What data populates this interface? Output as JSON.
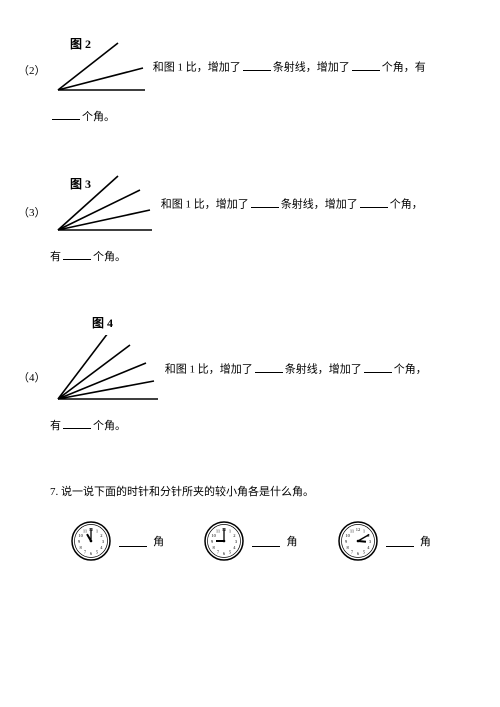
{
  "q2": {
    "num": "（2）",
    "figLabel": "图 2",
    "textA": "和图 1 比，增加了",
    "unitA": "条射线，增加了",
    "unitB": "个角，有",
    "contA": "个角。",
    "rays": 3
  },
  "q3": {
    "num": "（3）",
    "figLabel": "图 3",
    "textA": "和图 1 比，增加了",
    "unitA": "条射线，增加了",
    "unitB": "个角，",
    "contPrefix": "有",
    "contA": "个角。",
    "rays": 4
  },
  "q4": {
    "num": "（4）",
    "figLabel": "图 4",
    "textA": "和图 1 比，增加了",
    "unitA": "条射线，增加了",
    "unitB": "个角，",
    "contPrefix": "有",
    "contA": "个角。",
    "rays": 5
  },
  "q7": {
    "prompt": "7. 说一说下面的时针和分针所夹的较小角各是什么角。",
    "angleWord": "角",
    "clocks": [
      {
        "hour": 11,
        "minute": 0
      },
      {
        "hour": 9,
        "minute": 0
      },
      {
        "hour": 3,
        "minute": 10
      }
    ]
  },
  "style": {
    "stroke": "#000000",
    "strokeWidth": 1.6,
    "clockFace": "#ffffff",
    "clockRadius": 20
  }
}
